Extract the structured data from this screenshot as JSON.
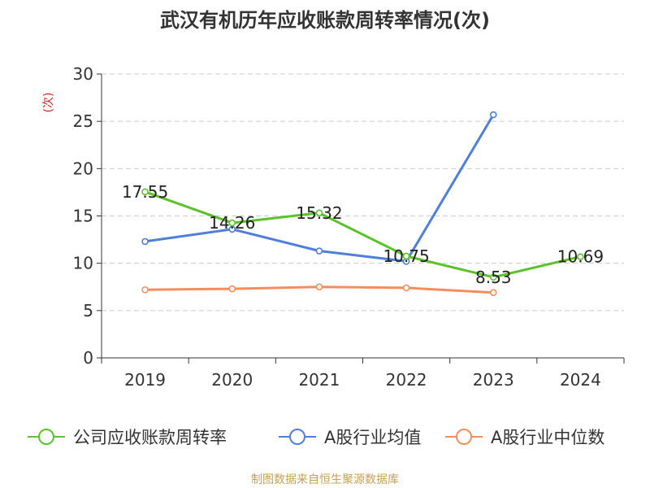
{
  "chart_data": {
    "type": "line",
    "title": "武汉有机历年应收账款周转率情况(次)",
    "ylabel": "(次)",
    "categories": [
      "2019",
      "2020",
      "2021",
      "2022",
      "2023",
      "2024"
    ],
    "ylim": [
      0,
      30
    ],
    "yticks": [
      0,
      5,
      10,
      15,
      20,
      25,
      30
    ],
    "grid": true,
    "legend_position": "bottom",
    "series": [
      {
        "name": "公司应收账款周转率",
        "color": "#5ac22b",
        "values": [
          17.55,
          14.26,
          15.32,
          10.75,
          8.53,
          10.69
        ],
        "labels": [
          "17.55",
          "14.26",
          "15.32",
          "10.75",
          "8.53",
          "10.69"
        ]
      },
      {
        "name": "A股行业均值",
        "color": "#4e7fd9",
        "values": [
          12.3,
          13.6,
          11.3,
          10.2,
          25.7,
          null
        ]
      },
      {
        "name": "A股行业中位数",
        "color": "#f58e5c",
        "values": [
          7.2,
          7.3,
          7.5,
          7.4,
          6.9,
          null
        ]
      }
    ],
    "source": "制图数据来自恒生聚源数据库"
  }
}
